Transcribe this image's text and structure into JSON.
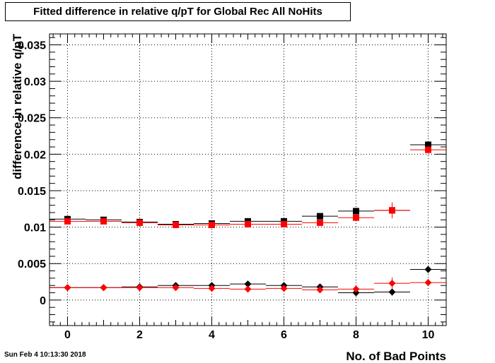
{
  "title": "Fitted difference in relative q/pT for Global Rec All NoHits",
  "timestamp": "Sun Feb  4 10:13:30 2018",
  "chart_data": {
    "type": "scatter",
    "title": "Fitted difference in relative q/pT for Global Rec All NoHits",
    "xlabel": "No. of Bad Points",
    "ylabel": "difference in relative q/pT",
    "xlim": [
      -0.5,
      10.5
    ],
    "ylim": [
      -0.0035,
      0.0365
    ],
    "grid": true,
    "x_ticks": [
      "0",
      "2",
      "4",
      "6",
      "8",
      "10"
    ],
    "y_ticks": [
      "0",
      "0.005",
      "0.01",
      "0.015",
      "0.02",
      "0.025",
      "0.03",
      "0.035"
    ],
    "x": [
      0,
      1,
      2,
      3,
      4,
      5,
      6,
      7,
      8,
      9,
      10
    ],
    "series": [
      {
        "marker": "square",
        "color": "#000000",
        "values": [
          0.0111,
          0.011,
          0.0107,
          0.0104,
          0.0105,
          0.0108,
          0.0108,
          0.0115,
          0.0122,
          0.0123,
          0.0213
        ],
        "errors": [
          0.0002,
          0.0002,
          0.0002,
          0.0002,
          0.0002,
          0.0002,
          0.0002,
          0.0003,
          0.0004,
          0.0006,
          0.0005
        ]
      },
      {
        "marker": "square",
        "color": "#ff0000",
        "values": [
          0.0108,
          0.0108,
          0.0106,
          0.0103,
          0.0103,
          0.0104,
          0.0104,
          0.0106,
          0.0113,
          0.0123,
          0.0206
        ],
        "errors": [
          0.0002,
          0.0002,
          0.0002,
          0.0002,
          0.0002,
          0.0002,
          0.0002,
          0.0003,
          0.0005,
          0.0011,
          0.0005
        ]
      },
      {
        "marker": "diamond",
        "color": "#000000",
        "values": [
          0.0017,
          0.0017,
          0.0018,
          0.002,
          0.002,
          0.0022,
          0.002,
          0.0018,
          0.001,
          0.0011,
          0.0042
        ],
        "errors": [
          0.0002,
          0.0002,
          0.0002,
          0.0002,
          0.0002,
          0.0002,
          0.0002,
          0.0003,
          0.0004,
          0.0005,
          0.0005
        ]
      },
      {
        "marker": "diamond",
        "color": "#ff0000",
        "values": [
          0.0017,
          0.0017,
          0.0017,
          0.0017,
          0.0016,
          0.0015,
          0.0016,
          0.0014,
          0.0015,
          0.0023,
          0.0024
        ],
        "errors": [
          0.0002,
          0.0002,
          0.0002,
          0.0002,
          0.0002,
          0.0002,
          0.0002,
          0.0003,
          0.0004,
          0.0008,
          0.0005
        ]
      }
    ]
  }
}
